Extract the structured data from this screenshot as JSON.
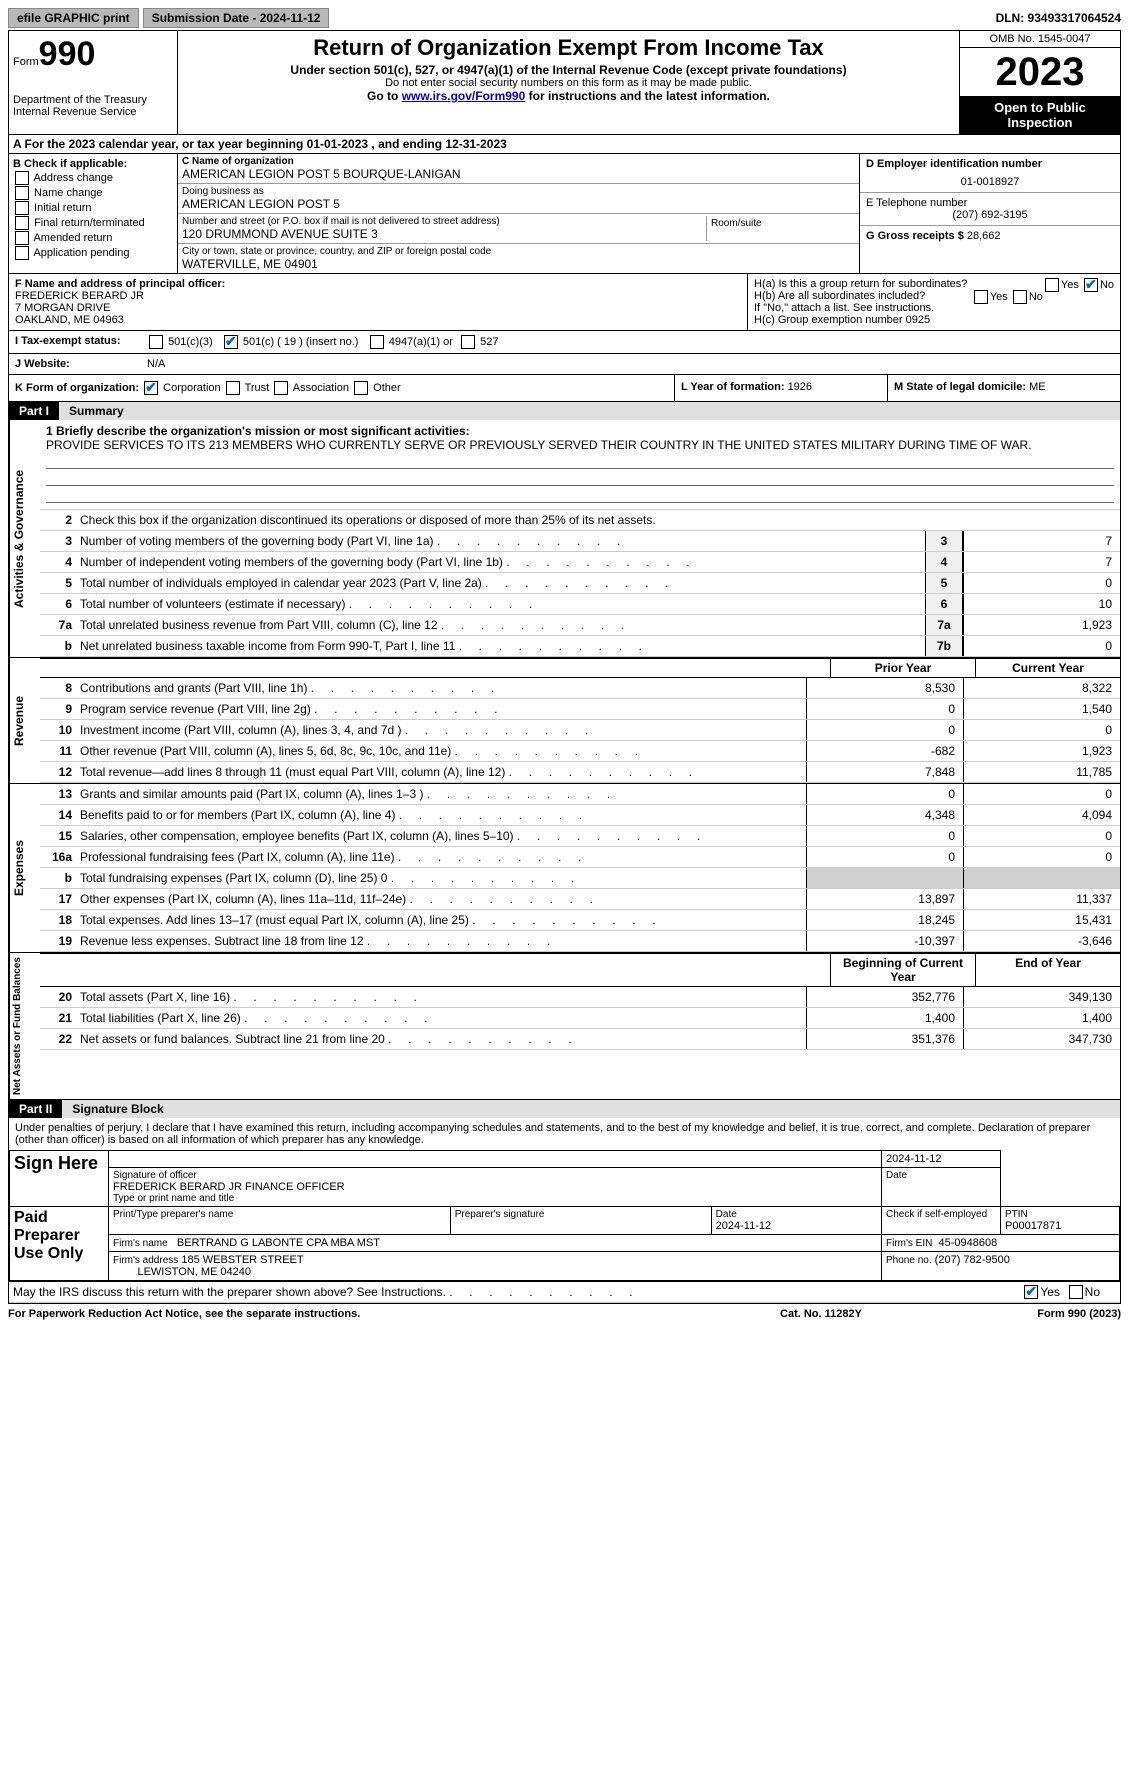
{
  "topbar": {
    "efile_label": "efile GRAPHIC print",
    "submission_label": "Submission Date - 2024-11-12",
    "dln_label": "DLN: 93493317064524"
  },
  "header": {
    "form_word": "Form",
    "form_num": "990",
    "dept": "Department of the Treasury\nInternal Revenue Service",
    "title": "Return of Organization Exempt From Income Tax",
    "sub": "Under section 501(c), 527, or 4947(a)(1) of the Internal Revenue Code (except private foundations)",
    "ssn": "Do not enter social security numbers on this form as it may be made public.",
    "goto_pre": "Go to ",
    "goto_link": "www.irs.gov/Form990",
    "goto_post": " for instructions and the latest information.",
    "omb": "OMB No. 1545-0047",
    "year": "2023",
    "open": "Open to Public Inspection"
  },
  "lineA": {
    "text_pre": "A For the 2023 calendar year, or tax year beginning ",
    "begin": "01-01-2023",
    "mid": " , and ending ",
    "end": "12-31-2023"
  },
  "colB": {
    "hdr": "B Check if applicable:",
    "items": [
      "Address change",
      "Name change",
      "Initial return",
      "Final return/terminated",
      "Amended return",
      "Application pending"
    ]
  },
  "colC": {
    "name_lbl": "C Name of organization",
    "name": "AMERICAN LEGION POST 5 BOURQUE-LANIGAN",
    "dba_lbl": "Doing business as",
    "dba": "AMERICAN LEGION POST 5",
    "street_lbl": "Number and street (or P.O. box if mail is not delivered to street address)",
    "street": "120 DRUMMOND AVENUE SUITE 3",
    "room_lbl": "Room/suite",
    "city_lbl": "City or town, state or province, country, and ZIP or foreign postal code",
    "city": "WATERVILLE, ME  04901"
  },
  "colD": {
    "ein_lbl": "D Employer identification number",
    "ein": "01-0018927",
    "tel_lbl": "E Telephone number",
    "tel": "(207) 692-3195",
    "gross_lbl": "G Gross receipts $ ",
    "gross": "28,662"
  },
  "rowF": {
    "lbl": "F Name and address of principal officer:",
    "name": "FREDERICK BERARD JR",
    "addr1": "7 MORGAN DRIVE",
    "addr2": "OAKLAND, ME  04963"
  },
  "rowH": {
    "ha": "H(a)  Is this a group return for subordinates?",
    "hb": "H(b)  Are all subordinates included?",
    "hb_note": "If \"No,\" attach a list. See instructions.",
    "hc": "H(c)  Group exemption number   0925",
    "yes": "Yes",
    "no": "No"
  },
  "rowI": {
    "lbl": "I    Tax-exempt status:",
    "o1": "501(c)(3)",
    "o2": "501(c) ( 19 ) (insert no.)",
    "o3": "4947(a)(1) or",
    "o4": "527"
  },
  "rowJ": {
    "lbl": "J    Website:",
    "val": "N/A"
  },
  "rowK": {
    "lbl": "K Form of organization:",
    "o1": "Corporation",
    "o2": "Trust",
    "o3": "Association",
    "o4": "Other"
  },
  "rowL": {
    "lbl": "L Year of formation: ",
    "val": "1926"
  },
  "rowM": {
    "lbl": "M State of legal domicile: ",
    "val": "ME"
  },
  "part1": {
    "num": "Part I",
    "title": "Summary",
    "vtab_ag": "Activities & Governance",
    "vtab_rev": "Revenue",
    "vtab_exp": "Expenses",
    "vtab_na": "Net Assets or Fund Balances",
    "l1_lbl": "1   Briefly describe the organization's mission or most significant activities:",
    "l1_val": "PROVIDE SERVICES TO ITS 213 MEMBERS WHO CURRENTLY SERVE OR PREVIOUSLY SERVED THEIR COUNTRY IN THE UNITED STATES MILITARY DURING TIME OF WAR.",
    "l2": "Check this box        if the organization discontinued its operations or disposed of more than 25% of its net assets.",
    "lines_ag": [
      {
        "n": "3",
        "t": "Number of voting members of the governing body (Part VI, line 1a)",
        "box": "3",
        "v": "7"
      },
      {
        "n": "4",
        "t": "Number of independent voting members of the governing body (Part VI, line 1b)",
        "box": "4",
        "v": "7"
      },
      {
        "n": "5",
        "t": "Total number of individuals employed in calendar year 2023 (Part V, line 2a)",
        "box": "5",
        "v": "0"
      },
      {
        "n": "6",
        "t": "Total number of volunteers (estimate if necessary)",
        "box": "6",
        "v": "10"
      },
      {
        "n": "7a",
        "t": "Total unrelated business revenue from Part VIII, column (C), line 12",
        "box": "7a",
        "v": "1,923"
      },
      {
        "n": "b",
        "t": "Net unrelated business taxable income from Form 990-T, Part I, line 11",
        "box": "7b",
        "v": "0"
      }
    ],
    "col_prior": "Prior Year",
    "col_curr": "Current Year",
    "lines_rev": [
      {
        "n": "8",
        "t": "Contributions and grants (Part VIII, line 1h)",
        "p": "8,530",
        "c": "8,322"
      },
      {
        "n": "9",
        "t": "Program service revenue (Part VIII, line 2g)",
        "p": "0",
        "c": "1,540"
      },
      {
        "n": "10",
        "t": "Investment income (Part VIII, column (A), lines 3, 4, and 7d )",
        "p": "0",
        "c": "0"
      },
      {
        "n": "11",
        "t": "Other revenue (Part VIII, column (A), lines 5, 6d, 8c, 9c, 10c, and 11e)",
        "p": "-682",
        "c": "1,923"
      },
      {
        "n": "12",
        "t": "Total revenue—add lines 8 through 11 (must equal Part VIII, column (A), line 12)",
        "p": "7,848",
        "c": "11,785"
      }
    ],
    "lines_exp": [
      {
        "n": "13",
        "t": "Grants and similar amounts paid (Part IX, column (A), lines 1–3 )",
        "p": "0",
        "c": "0"
      },
      {
        "n": "14",
        "t": "Benefits paid to or for members (Part IX, column (A), line 4)",
        "p": "4,348",
        "c": "4,094"
      },
      {
        "n": "15",
        "t": "Salaries, other compensation, employee benefits (Part IX, column (A), lines 5–10)",
        "p": "0",
        "c": "0"
      },
      {
        "n": "16a",
        "t": "Professional fundraising fees (Part IX, column (A), line 11e)",
        "p": "0",
        "c": "0"
      },
      {
        "n": "b",
        "t": "Total fundraising expenses (Part IX, column (D), line 25) 0",
        "p": "",
        "c": "",
        "gray": true
      },
      {
        "n": "17",
        "t": "Other expenses (Part IX, column (A), lines 11a–11d, 11f–24e)",
        "p": "13,897",
        "c": "11,337"
      },
      {
        "n": "18",
        "t": "Total expenses. Add lines 13–17 (must equal Part IX, column (A), line 25)",
        "p": "18,245",
        "c": "15,431"
      },
      {
        "n": "19",
        "t": "Revenue less expenses. Subtract line 18 from line 12",
        "p": "-10,397",
        "c": "-3,646"
      }
    ],
    "col_begin": "Beginning of Current Year",
    "col_end": "End of Year",
    "lines_na": [
      {
        "n": "20",
        "t": "Total assets (Part X, line 16)",
        "p": "352,776",
        "c": "349,130"
      },
      {
        "n": "21",
        "t": "Total liabilities (Part X, line 26)",
        "p": "1,400",
        "c": "1,400"
      },
      {
        "n": "22",
        "t": "Net assets or fund balances. Subtract line 21 from line 20",
        "p": "351,376",
        "c": "347,730"
      }
    ]
  },
  "part2": {
    "num": "Part II",
    "title": "Signature Block",
    "decl": "Under penalties of perjury, I declare that I have examined this return, including accompanying schedules and statements, and to the best of my knowledge and belief, it is true, correct, and complete. Declaration of preparer (other than officer) is based on all information of which preparer has any knowledge.",
    "sign_here": "Sign Here",
    "sig_officer_lbl": "Signature of officer",
    "sig_officer": "FREDERICK BERARD JR  FINANCE OFFICER",
    "sig_type_lbl": "Type or print name and title",
    "sig_date": "2024-11-12",
    "date_lbl": "Date",
    "paid": "Paid Preparer Use Only",
    "prep_name_lbl": "Print/Type preparer's name",
    "prep_sig_lbl": "Preparer's signature",
    "prep_date": "2024-11-12",
    "prep_check": "Check        if self-employed",
    "ptin_lbl": "PTIN",
    "ptin": "P00017871",
    "firm_name_lbl": "Firm's name",
    "firm_name": "BERTRAND G LABONTE CPA MBA MST",
    "firm_ein_lbl": "Firm's EIN",
    "firm_ein": "45-0948608",
    "firm_addr_lbl": "Firm's address",
    "firm_addr1": "185 WEBSTER STREET",
    "firm_addr2": "LEWISTON, ME  04240",
    "firm_phone_lbl": "Phone no.",
    "firm_phone": "(207) 782-9500",
    "discuss": "May the IRS discuss this return with the preparer shown above? See Instructions.",
    "yes": "Yes",
    "no": "No"
  },
  "footer": {
    "pra": "For Paperwork Reduction Act Notice, see the separate instructions.",
    "cat": "Cat. No. 11282Y",
    "form": "Form 990 (2023)"
  }
}
